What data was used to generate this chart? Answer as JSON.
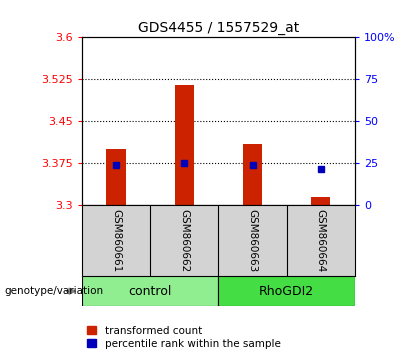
{
  "title": "GDS4455 / 1557529_at",
  "samples": [
    "GSM860661",
    "GSM860662",
    "GSM860663",
    "GSM860664"
  ],
  "groups": [
    "control",
    "control",
    "RhoGDI2",
    "RhoGDI2"
  ],
  "control_color_light": "#B8F0B8",
  "control_color": "#90EE90",
  "rhogdi2_color": "#44DD44",
  "bar_bottoms": [
    3.3,
    3.3,
    3.3,
    3.3
  ],
  "bar_tops": [
    3.4,
    3.515,
    3.41,
    3.315
  ],
  "percentile_values": [
    24.0,
    25.0,
    24.0,
    21.5
  ],
  "ylim_left": [
    3.3,
    3.6
  ],
  "ylim_right": [
    0,
    100
  ],
  "yticks_left": [
    3.3,
    3.375,
    3.45,
    3.525,
    3.6
  ],
  "yticks_right": [
    0,
    25,
    50,
    75,
    100
  ],
  "ytick_labels_right": [
    "0",
    "25",
    "50",
    "75",
    "100%"
  ],
  "bar_color": "#CC2200",
  "dot_color": "#0000BB",
  "grid_levels": [
    3.375,
    3.45,
    3.525
  ],
  "xlabel_genotype": "genotype/variation",
  "legend_bar": "transformed count",
  "legend_dot": "percentile rank within the sample"
}
